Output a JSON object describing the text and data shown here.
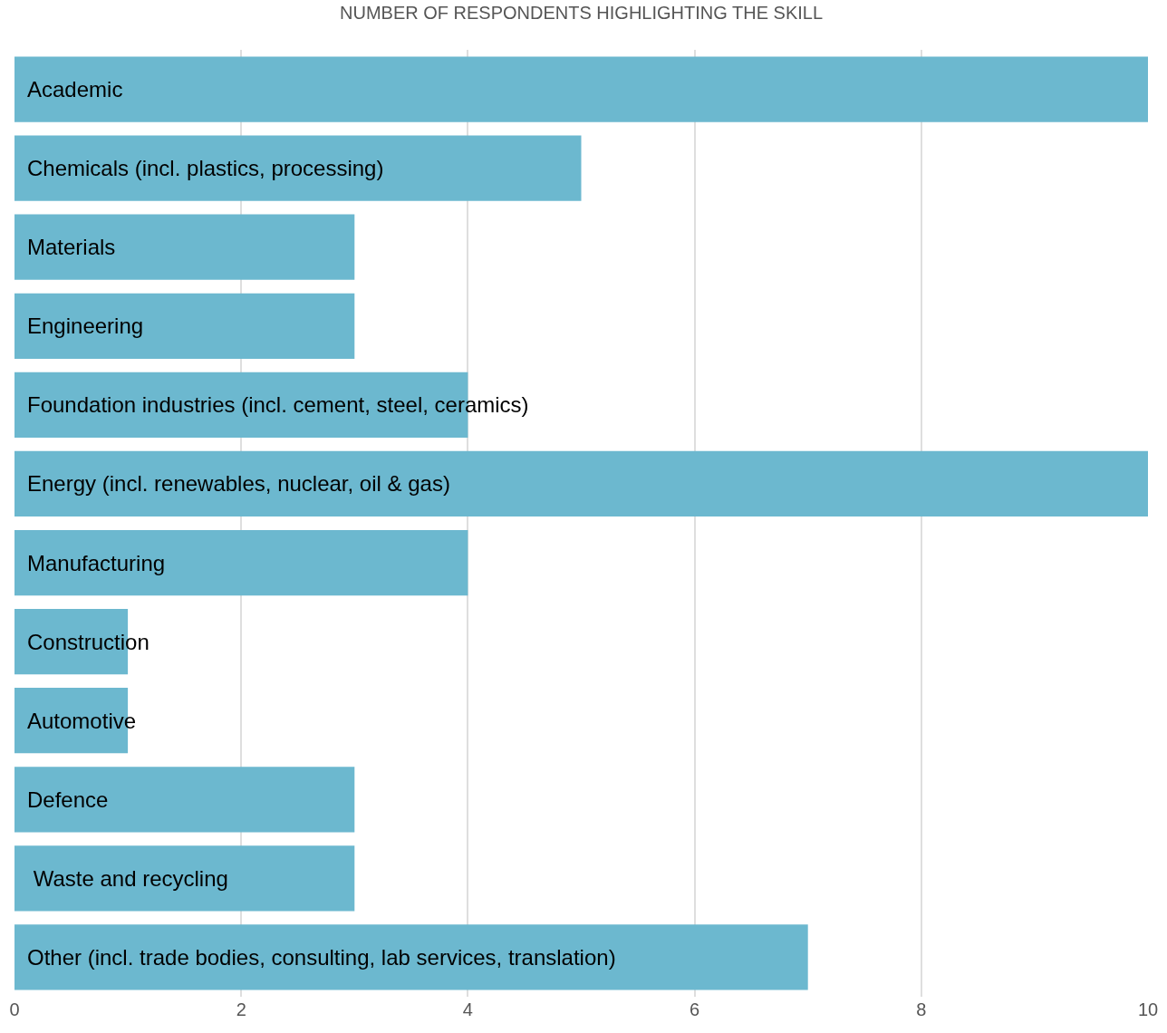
{
  "chart_data": {
    "type": "bar",
    "orientation": "horizontal",
    "xlabel": "NUMBER OF RESPONDENTS HIGHLIGHTING THE SKILL",
    "categories": [
      "Academic",
      "Chemicals (incl. plastics, processing)",
      "Materials",
      "Engineering",
      "Foundation industries (incl. cement, steel, ceramics)",
      "Energy (incl. renewables, nuclear, oil & gas)",
      "Manufacturing",
      "Construction",
      "Automotive",
      "Defence",
      " Waste and recycling",
      "Other (incl. trade bodies, consulting, lab services, translation)"
    ],
    "values": [
      10,
      5,
      3,
      3,
      4,
      10,
      4,
      1,
      1,
      3,
      3,
      7
    ],
    "color": "#6cb8cf",
    "xlim": [
      0,
      10
    ],
    "xticks": [
      0,
      2,
      4,
      6,
      8,
      10
    ],
    "grid": "x"
  }
}
